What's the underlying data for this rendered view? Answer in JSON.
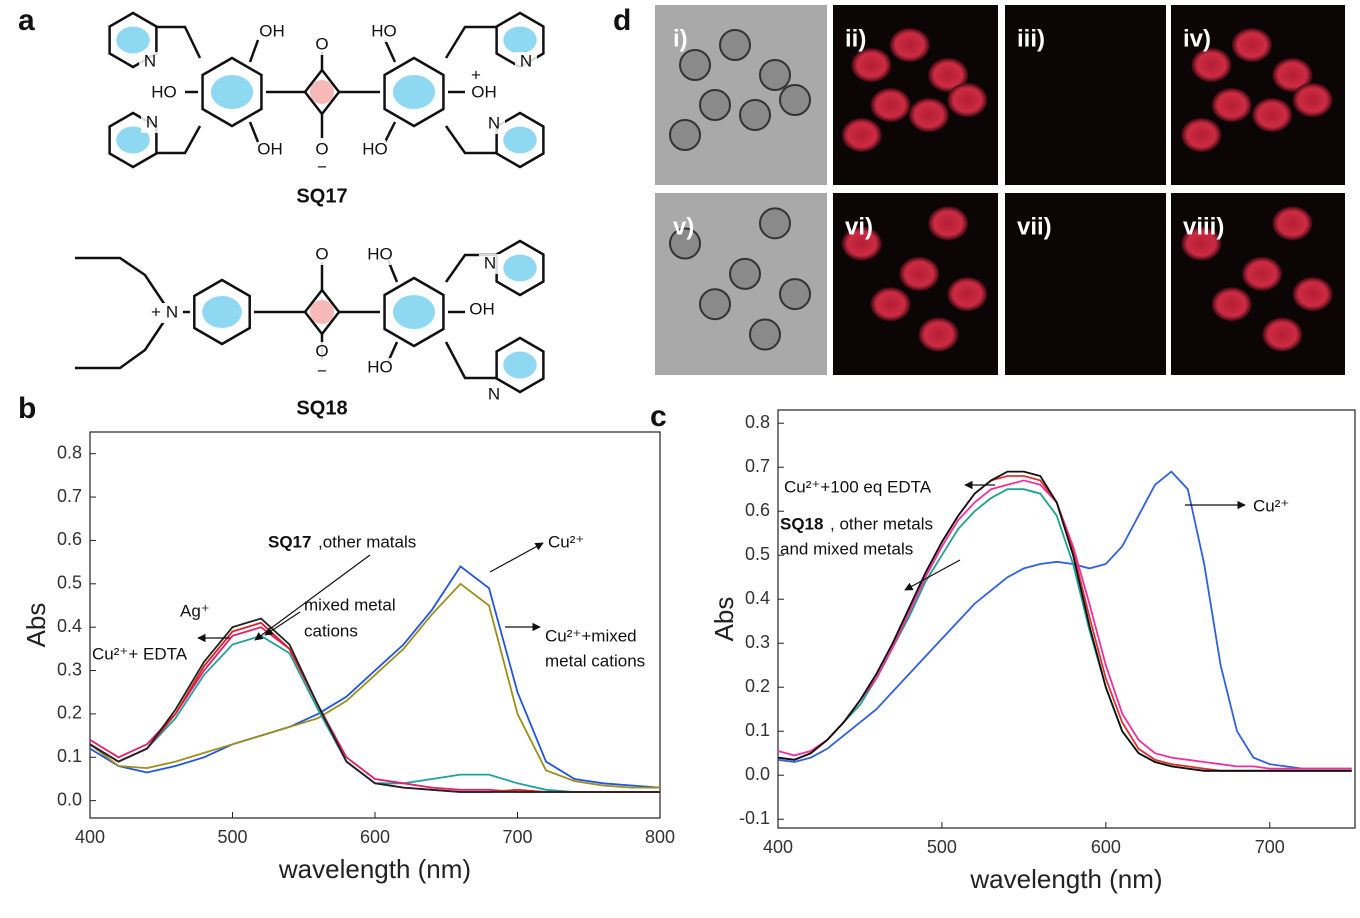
{
  "panels": {
    "a": "a",
    "b": "b",
    "c": "c",
    "d": "d"
  },
  "structures": [
    {
      "name": "SQ17",
      "atoms": [
        "N",
        "OH",
        "O",
        "HO",
        "N",
        "+",
        "HO",
        "OH",
        "N",
        "OH",
        "O",
        "−",
        "HO",
        "N"
      ]
    },
    {
      "name": "SQ18",
      "atoms": [
        "O",
        "HO",
        "N",
        "+",
        "N",
        "OH",
        "O",
        "−",
        "HO",
        "N"
      ]
    }
  ],
  "micrographs": [
    "i)",
    "ii)",
    "iii)",
    "iv)",
    "v)",
    "vi)",
    "vii)",
    "viii)"
  ],
  "chart_data": [
    {
      "type": "line",
      "xlabel": "wavelength (nm)",
      "ylabel": "Abs",
      "x": [
        400,
        420,
        440,
        460,
        480,
        500,
        520,
        540,
        560,
        580,
        600,
        620,
        640,
        660,
        680,
        700,
        720,
        740,
        760,
        780,
        800
      ],
      "xlim": [
        400,
        800
      ],
      "xticks": [
        400,
        500,
        600,
        700,
        800
      ],
      "ylim": [
        -0.04,
        0.85
      ],
      "yticks": [
        {
          "value": 0,
          "label": "0.0"
        },
        0.1,
        0.2,
        0.3,
        0.4,
        0.5,
        0.6,
        0.7,
        0.8
      ],
      "series": [
        {
          "color": "#2255dd",
          "values": [
            0.12,
            0.08,
            0.065,
            0.08,
            0.1,
            0.13,
            0.15,
            0.17,
            0.2,
            0.24,
            0.3,
            0.36,
            0.44,
            0.54,
            0.49,
            0.25,
            0.09,
            0.05,
            0.04,
            0.035,
            0.03
          ]
        },
        {
          "color": "#9a8f1e",
          "values": [
            0.13,
            0.08,
            0.075,
            0.09,
            0.11,
            0.13,
            0.15,
            0.17,
            0.19,
            0.23,
            0.29,
            0.35,
            0.43,
            0.5,
            0.45,
            0.2,
            0.07,
            0.045,
            0.035,
            0.03,
            0.03
          ]
        },
        {
          "color": "#20a0a0",
          "values": [
            0.13,
            0.09,
            0.12,
            0.19,
            0.29,
            0.36,
            0.38,
            0.34,
            0.21,
            0.09,
            0.04,
            0.04,
            0.05,
            0.06,
            0.06,
            0.04,
            0.025,
            0.02,
            0.02,
            0.02,
            0.02
          ]
        },
        {
          "color": "#e0206a",
          "values": [
            0.14,
            0.1,
            0.13,
            0.2,
            0.3,
            0.38,
            0.4,
            0.35,
            0.22,
            0.1,
            0.05,
            0.04,
            0.03,
            0.025,
            0.025,
            0.02,
            0.02,
            0.02,
            0.02,
            0.02,
            0.02
          ]
        },
        {
          "color": "#dd2020",
          "values": [
            0.13,
            0.09,
            0.12,
            0.2,
            0.31,
            0.39,
            0.41,
            0.35,
            0.22,
            0.09,
            0.04,
            0.03,
            0.025,
            0.02,
            0.02,
            0.025,
            0.02,
            0.02,
            0.02,
            0.02,
            0.02
          ]
        },
        {
          "color": "#222222",
          "values": [
            0.13,
            0.09,
            0.12,
            0.21,
            0.32,
            0.4,
            0.42,
            0.36,
            0.22,
            0.09,
            0.04,
            0.03,
            0.025,
            0.02,
            0.02,
            0.02,
            0.02,
            0.02,
            0.02,
            0.02,
            0.02
          ]
        }
      ],
      "annotations": [
        {
          "text": "SQ17"
        },
        {
          "text": ",other matals"
        },
        {
          "text": "Ag⁺"
        },
        {
          "text": "mixed metal"
        },
        {
          "text": "cations"
        },
        {
          "text": "Cu²⁺+ EDTA"
        },
        {
          "text": "Cu²⁺"
        },
        {
          "text": "Cu²⁺+mixed"
        },
        {
          "text": "metal cations"
        }
      ]
    },
    {
      "type": "line",
      "xlabel": "wavelength (nm)",
      "ylabel": "Abs",
      "x": [
        400,
        410,
        420,
        430,
        440,
        450,
        460,
        470,
        480,
        490,
        500,
        510,
        520,
        530,
        540,
        550,
        560,
        570,
        580,
        590,
        600,
        610,
        620,
        630,
        640,
        650,
        660,
        670,
        680,
        690,
        700,
        710,
        720,
        730,
        740,
        750
      ],
      "xlim": [
        400,
        752
      ],
      "xticks": [
        400,
        500,
        600,
        700
      ],
      "ylim": [
        -0.12,
        0.83
      ],
      "yticks": [
        -0.1,
        {
          "value": 0,
          "label": "0.0"
        },
        0.1,
        0.2,
        0.3,
        0.4,
        0.5,
        0.6,
        0.7,
        0.8
      ],
      "series": [
        {
          "color": "#3060e0",
          "values": [
            0.035,
            0.03,
            0.04,
            0.06,
            0.09,
            0.12,
            0.15,
            0.19,
            0.23,
            0.27,
            0.31,
            0.35,
            0.39,
            0.42,
            0.45,
            0.47,
            0.48,
            0.485,
            0.48,
            0.47,
            0.48,
            0.52,
            0.59,
            0.66,
            0.69,
            0.65,
            0.48,
            0.25,
            0.1,
            0.04,
            0.025,
            0.02,
            0.015,
            0.015,
            0.015,
            0.015
          ]
        },
        {
          "color": "#20a090",
          "values": [
            0.04,
            0.035,
            0.05,
            0.08,
            0.12,
            0.16,
            0.22,
            0.29,
            0.36,
            0.44,
            0.5,
            0.56,
            0.6,
            0.63,
            0.65,
            0.65,
            0.64,
            0.59,
            0.48,
            0.33,
            0.2,
            0.1,
            0.05,
            0.03,
            0.02,
            0.015,
            0.01,
            0.01,
            0.01,
            0.01,
            0.01,
            0.01,
            0.01,
            0.01,
            0.01,
            0.01
          ]
        },
        {
          "color": "#ee30a0",
          "values": [
            0.055,
            0.045,
            0.055,
            0.08,
            0.12,
            0.17,
            0.22,
            0.29,
            0.37,
            0.45,
            0.52,
            0.58,
            0.62,
            0.65,
            0.66,
            0.67,
            0.66,
            0.62,
            0.52,
            0.39,
            0.25,
            0.14,
            0.08,
            0.05,
            0.04,
            0.035,
            0.03,
            0.025,
            0.02,
            0.02,
            0.015,
            0.015,
            0.015,
            0.015,
            0.015,
            0.015
          ]
        },
        {
          "color": "#e03030",
          "values": [
            0.04,
            0.035,
            0.05,
            0.08,
            0.12,
            0.17,
            0.23,
            0.3,
            0.38,
            0.46,
            0.53,
            0.59,
            0.64,
            0.67,
            0.68,
            0.68,
            0.67,
            0.62,
            0.51,
            0.36,
            0.22,
            0.12,
            0.06,
            0.035,
            0.025,
            0.02,
            0.015,
            0.01,
            0.01,
            0.01,
            0.01,
            0.01,
            0.01,
            0.01,
            0.01,
            0.01
          ]
        },
        {
          "color": "#111111",
          "values": [
            0.04,
            0.035,
            0.05,
            0.08,
            0.12,
            0.17,
            0.23,
            0.3,
            0.38,
            0.46,
            0.53,
            0.59,
            0.64,
            0.67,
            0.69,
            0.69,
            0.68,
            0.62,
            0.5,
            0.34,
            0.2,
            0.1,
            0.05,
            0.03,
            0.02,
            0.015,
            0.01,
            0.01,
            0.01,
            0.01,
            0.01,
            0.01,
            0.01,
            0.01,
            0.01,
            0.01
          ]
        }
      ],
      "annotations": [
        {
          "text": "Cu²⁺+100 eq EDTA"
        },
        {
          "text": "SQ18"
        },
        {
          "text": ", other metals"
        },
        {
          "text": "and mixed metals"
        },
        {
          "text": "Cu²⁺"
        }
      ]
    }
  ]
}
